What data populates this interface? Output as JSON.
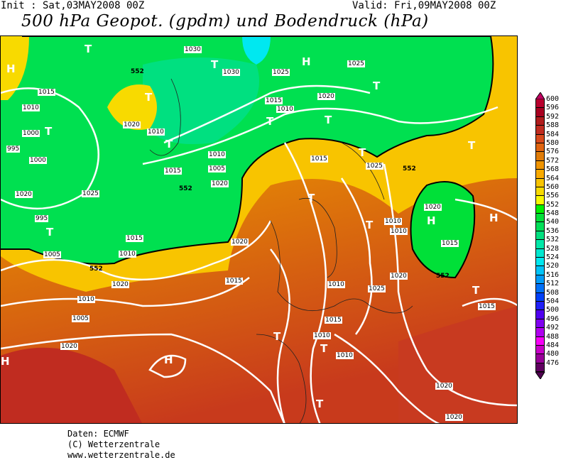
{
  "header": {
    "init": "Init : Sat,03MAY2008 00Z",
    "valid": "Valid: Fri,09MAY2008 00Z",
    "title": "500 hPa Geopot. (gpdm) und Bodendruck (hPa)"
  },
  "legend": {
    "labels": [
      "600",
      "596",
      "592",
      "588",
      "584",
      "580",
      "576",
      "572",
      "568",
      "564",
      "560",
      "556",
      "552",
      "548",
      "540",
      "536",
      "532",
      "528",
      "524",
      "520",
      "516",
      "512",
      "508",
      "504",
      "500",
      "496",
      "492",
      "488",
      "484",
      "480",
      "476"
    ],
    "colors": [
      "#b8002e",
      "#a80020",
      "#b01c1c",
      "#c02c20",
      "#d84a1c",
      "#e06410",
      "#e07c08",
      "#f09400",
      "#f8aa00",
      "#f8c400",
      "#f8da00",
      "#f8f800",
      "#00f000",
      "#00e038",
      "#00e058",
      "#00e080",
      "#00e8a8",
      "#00e8d0",
      "#00e8f0",
      "#00c4f8",
      "#009cf8",
      "#0070f8",
      "#0040f8",
      "#2020f8",
      "#5000f0",
      "#8000f0",
      "#b000f0",
      "#f800f8",
      "#c800c8",
      "#980098",
      "#600060"
    ],
    "top_color": "#c00060",
    "bottom_color": "#500050"
  },
  "map": {
    "isobar_labels": [
      "1030",
      "1030",
      "1025",
      "1025",
      "1020",
      "1020",
      "1015",
      "1015",
      "1010",
      "1010",
      "1000",
      "995",
      "995",
      "1000",
      "1005",
      "1010",
      "1015",
      "1020",
      "1025",
      "1020",
      "1015",
      "1010",
      "1005",
      "1020",
      "1020",
      "1015",
      "1010",
      "1005",
      "1015",
      "1010",
      "1010",
      "1020",
      "1020",
      "1020",
      "1015",
      "1010",
      "1010",
      "1025",
      "1020",
      "1015",
      "1010",
      "1020",
      "1025",
      "1015",
      "1010"
    ],
    "geopot_labels": [
      "552",
      "552",
      "552",
      "552",
      "552"
    ],
    "pressure_centers": [
      "T",
      "H",
      "T",
      "T",
      "T",
      "T",
      "H",
      "T",
      "T",
      "T",
      "T",
      "T",
      "H",
      "T",
      "T",
      "H",
      "H",
      "T",
      "T",
      "T",
      "T",
      "H",
      "T"
    ]
  },
  "footer": {
    "line1": "Daten: ECMWF",
    "line2": "(C) Wetterzentrale",
    "line3": "www.wetterzentrale.de"
  }
}
